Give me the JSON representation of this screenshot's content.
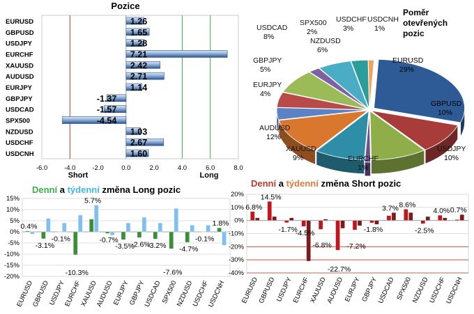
{
  "chart_data": [
    {
      "type": "bar",
      "orientation": "horizontal",
      "title": "Pozice",
      "categories": [
        "EURUSD",
        "GBPUSD",
        "USDJPY",
        "EURCHF",
        "XAUUSD",
        "AUDUSD",
        "EURJPY",
        "GBPJPY",
        "USDCAD",
        "SPX500",
        "NZDUSD",
        "USDCHF",
        "USDCNH"
      ],
      "values": [
        1.26,
        1.65,
        1.28,
        7.21,
        2.42,
        2.71,
        1.14,
        -1.37,
        -1.57,
        -4.54,
        1.03,
        2.67,
        1.6
      ],
      "xlim": [
        -6,
        8
      ],
      "xticks": [
        "-6.0",
        "-4.0",
        "-2.0",
        "0.0",
        "2.0",
        "4.0",
        "6.0",
        "8.0"
      ],
      "short_label": "Short",
      "long_label": "Long",
      "colors": {
        "bar": "#7a9cc8",
        "bar_dark": "#24487e",
        "short_line": "#c0392b",
        "long_line": "#3fae49"
      }
    },
    {
      "type": "pie",
      "title": "Poměr otevřených pozic",
      "labels": [
        "EURUSD",
        "GBPUSD",
        "USDJPY",
        "EURCHF",
        "XAUUSD",
        "AUDUSD",
        "EURJPY",
        "GBPJPY",
        "USDCAD",
        "SPX500",
        "NZDUSD",
        "USDCHF",
        "USDCNH"
      ],
      "percent_labels": [
        "29%",
        "10%",
        "10%",
        "1%",
        "9%",
        "12%",
        "4%",
        "5%",
        "8%",
        "2%",
        "6%",
        "3%",
        "1%"
      ],
      "values": [
        29,
        10,
        10,
        1,
        9,
        12,
        4,
        5,
        8,
        2,
        6,
        3,
        1
      ],
      "colors": [
        "#2e5a95",
        "#a83c3a",
        "#8fae4a",
        "#6b4e93",
        "#2e8ea8",
        "#d9772e",
        "#5b82c4",
        "#b84a48",
        "#9bbb59",
        "#7c62a5",
        "#4bacc6",
        "#2b9d9b",
        "#f3a25a"
      ]
    },
    {
      "type": "bar",
      "title_parts": [
        "Denní",
        " a ",
        "týdenní",
        " změna Long pozic"
      ],
      "title_colors": [
        "#3fae49",
        "#000000",
        "#41b6e6",
        "#000000"
      ],
      "categories": [
        "EURUSD",
        "GBPUSD",
        "USDJPY",
        "EURCHF",
        "XAUUSD",
        "AUDUSD",
        "EURJPY",
        "GBPJPY",
        "USDCAD",
        "SPX500",
        "NZDUSD",
        "USDCHF",
        "USDCNH"
      ],
      "series": [
        {
          "name": "Denní",
          "values": [
            0.4,
            -3.1,
            -0.1,
            -10.3,
            5.7,
            -0.7,
            -3.5,
            -2.6,
            -3.2,
            -7.6,
            -4.7,
            -0.1,
            1.8
          ],
          "color": "#3a8f3a"
        },
        {
          "name": "týdenní",
          "values": [
            -1.0,
            6.0,
            4.0,
            7.5,
            12.0,
            -1.5,
            4.0,
            6.5,
            4.0,
            10.5,
            3.0,
            3.0,
            -6.0
          ],
          "color": "#7fc0f0"
        }
      ],
      "data_labels": [
        "0.4%",
        "-3.1%",
        "-0.1%",
        "-10.3%",
        "5.7%",
        "-0.7%",
        "-3.5%",
        "-2.6%",
        "-3.2%",
        "-7.6%",
        "-4.7%",
        "-0.1%",
        "1.8%"
      ],
      "ylim": [
        -20,
        15
      ],
      "yticks": [
        "15%",
        "10%",
        "5%",
        "0%",
        "-5%",
        "-10%",
        "-15%",
        "-20%"
      ]
    },
    {
      "type": "bar",
      "title_parts": [
        "Denní",
        " a ",
        "týdenní",
        " změna Short pozic"
      ],
      "title_colors": [
        "#c0392b",
        "#000000",
        "#e07b39",
        "#000000"
      ],
      "categories": [
        "EURUSD",
        "GBPUSD",
        "USDJPY",
        "EURCHF",
        "XAUUSD",
        "AUDUSD",
        "EURJPY",
        "GBPJPY",
        "USDCAD",
        "SPX500",
        "NZDUSD",
        "USDCHF",
        "USDCNH"
      ],
      "series": [
        {
          "name": "Denní",
          "values": [
            6.8,
            14.5,
            -1.7,
            -4.5,
            -6.8,
            -22.7,
            -7.2,
            -1.8,
            3.7,
            8.6,
            -2.5,
            4.0,
            0.7
          ],
          "color": "#c0171c"
        },
        {
          "name": "týdenní",
          "values": [
            2.0,
            3.0,
            2.0,
            -31.0,
            1.0,
            -6.0,
            -4.0,
            -3.0,
            6.0,
            6.0,
            3.0,
            2.0,
            4.5
          ],
          "color": "#7a1b1e"
        }
      ],
      "data_labels": [
        "6.8%",
        "14.5%",
        "-1.7%",
        "-4.5%",
        "-6.8%",
        "-22.7%",
        "-7.2%",
        "-1.8%",
        "3.7%",
        "8.6%",
        "-2.5%",
        "4.0%",
        "0.7%"
      ],
      "ylim": [
        -40,
        20
      ],
      "yticks": [
        "20%",
        "10%",
        "0%",
        "-10%",
        "-20%",
        "-30%",
        "-40%"
      ]
    }
  ]
}
